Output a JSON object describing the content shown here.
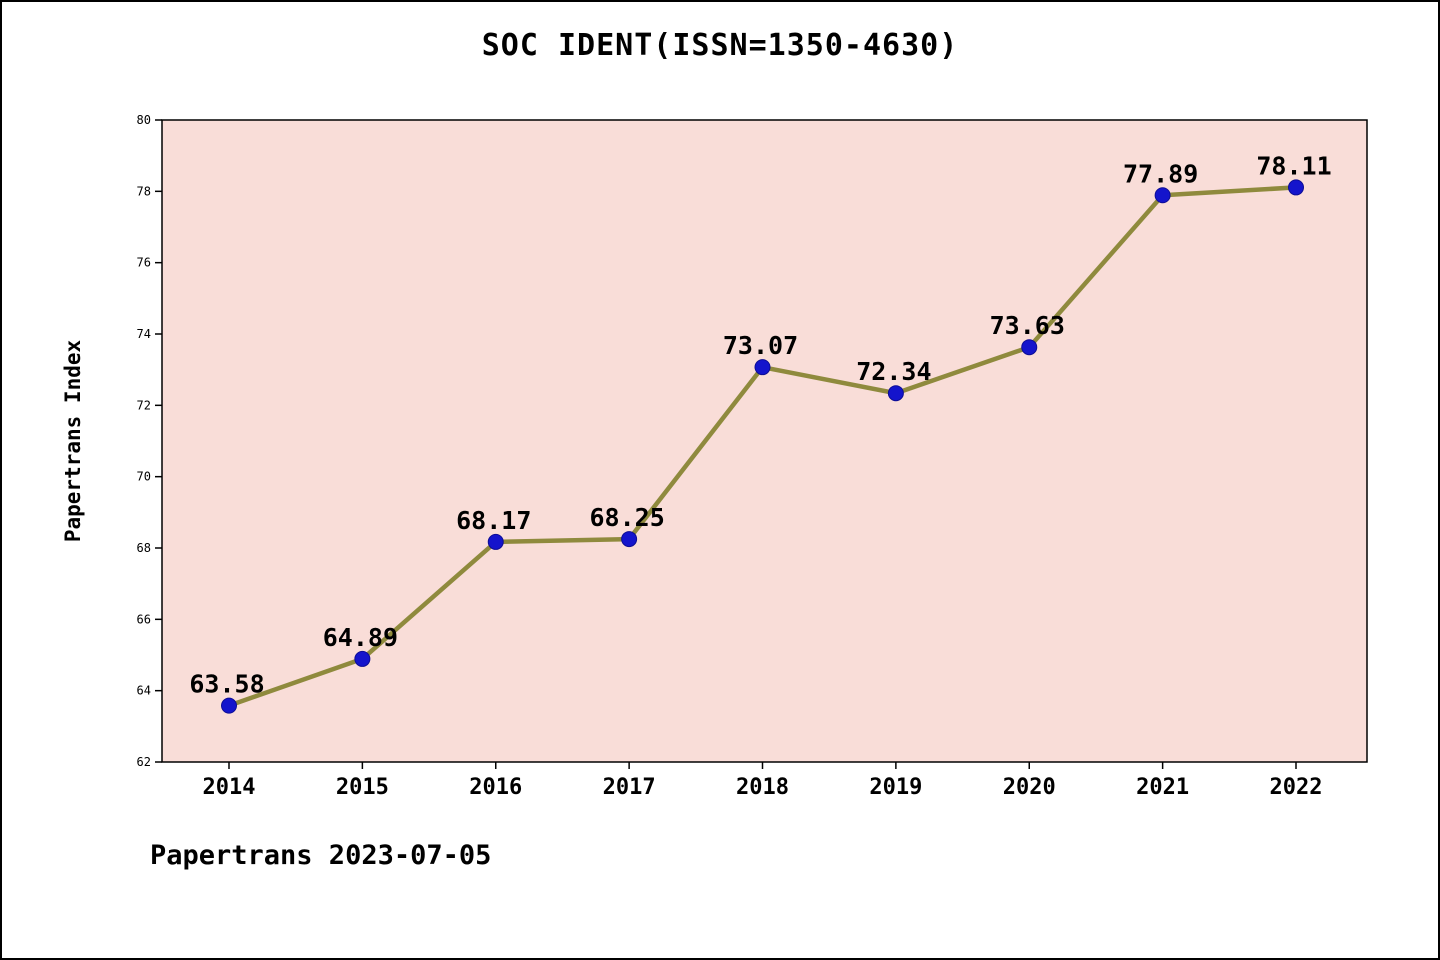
{
  "page": {
    "title": "SOC IDENT(ISSN=1350-4630)",
    "footer": "Papertrans 2023-07-05"
  },
  "chart_data": {
    "type": "line",
    "title": "SOC IDENT(ISSN=1350-4630)",
    "x": [
      2014,
      2015,
      2016,
      2017,
      2018,
      2019,
      2020,
      2021,
      2022
    ],
    "x_tick_labels": [
      "2014",
      "2015",
      "2016",
      "2017",
      "2018",
      "2019",
      "2020",
      "2021",
      "2022"
    ],
    "values": [
      63.58,
      64.89,
      68.17,
      68.25,
      73.07,
      72.34,
      73.63,
      77.89,
      78.11
    ],
    "value_labels": [
      "63.58",
      "64.89",
      "68.17",
      "68.25",
      "73.07",
      "72.34",
      "73.63",
      "77.89",
      "78.11"
    ],
    "xlabel": "",
    "ylabel": "Papertrans Index",
    "ylim": [
      62,
      80
    ],
    "yticks": [
      62,
      64,
      66,
      68,
      70,
      72,
      74,
      76,
      78,
      80
    ],
    "grid": false,
    "legend": "none",
    "colors": {
      "line": "#8f8a3d",
      "marker_fill": "#1414cc",
      "marker_edge": "#0d0d96",
      "plot_background": "#f9ddd8",
      "axis": "#000000",
      "text": "#000000"
    }
  }
}
